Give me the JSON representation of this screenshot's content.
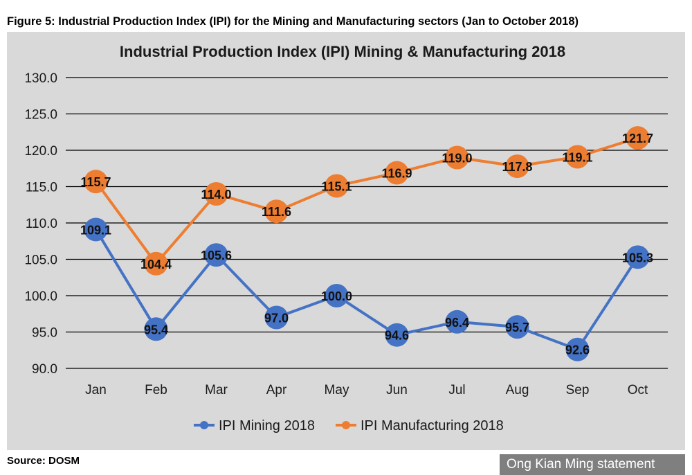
{
  "figure_caption": "Figure 5: Industrial Production Index (IPI) for the Mining and Manufacturing sectors (Jan to October 2018)",
  "source_label": "Source: DOSM",
  "credit_label": "Ong Kian Ming statement",
  "colors": {
    "mining": "#4472c4",
    "manufacturing": "#ed7d31",
    "panel": "#d9d9d9",
    "grid": "#000000"
  },
  "chart_data": {
    "type": "line",
    "title": "Industrial Production Index (IPI) Mining & Manufacturing 2018",
    "xlabel": "",
    "ylabel": "",
    "categories": [
      "Jan",
      "Feb",
      "Mar",
      "Apr",
      "May",
      "Jun",
      "Jul",
      "Aug",
      "Sep",
      "Oct"
    ],
    "ylim": [
      90.0,
      130.0
    ],
    "yticks": [
      "90.0",
      "95.0",
      "100.0",
      "105.0",
      "110.0",
      "115.0",
      "120.0",
      "125.0",
      "130.0"
    ],
    "grid": true,
    "legend_position": "bottom",
    "series": [
      {
        "name": "IPI Mining 2018",
        "color": "#4472c4",
        "values": [
          109.1,
          95.4,
          105.6,
          97.0,
          100.0,
          94.6,
          96.4,
          95.7,
          92.6,
          105.3
        ],
        "labels": [
          "109.1",
          "95.4",
          "105.6",
          "97.0",
          "100.0",
          "94.6",
          "96.4",
          "95.7",
          "92.6",
          "105.3"
        ]
      },
      {
        "name": "IPI Manufacturing 2018",
        "color": "#ed7d31",
        "values": [
          115.7,
          104.4,
          114.0,
          111.6,
          115.1,
          116.9,
          119.0,
          117.8,
          119.1,
          121.7
        ],
        "labels": [
          "115.7",
          "104.4",
          "114.0",
          "111.6",
          "115.1",
          "116.9",
          "119.0",
          "117.8",
          "119.1",
          "121.7"
        ]
      }
    ]
  }
}
